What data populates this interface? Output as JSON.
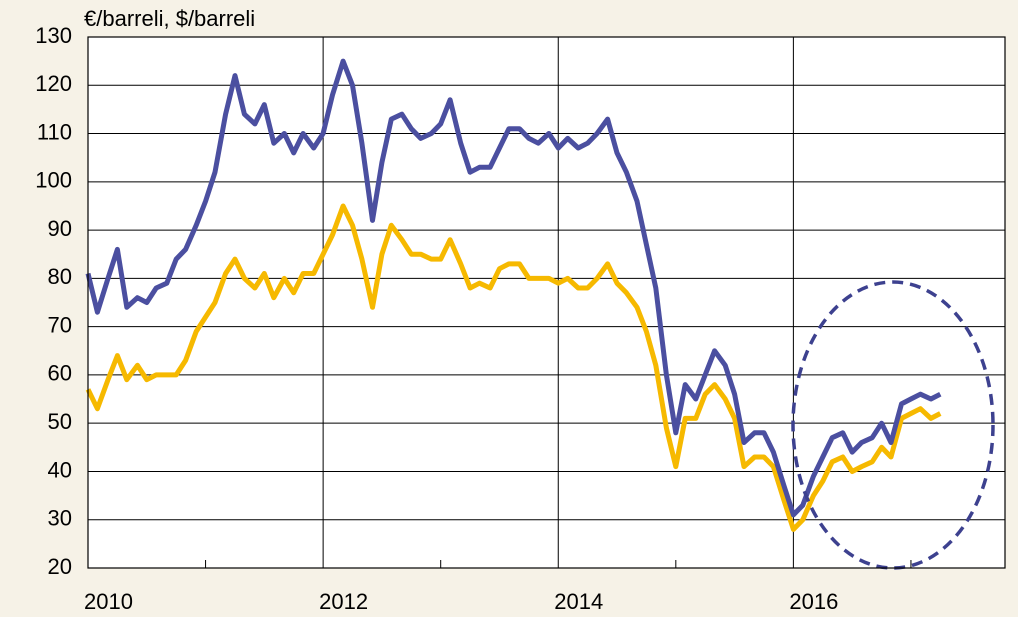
{
  "chart_data": {
    "type": "line",
    "ylabel": "€/barreli, $/barreli",
    "x": [
      2010,
      2010.08,
      2010.17,
      2010.25,
      2010.33,
      2010.42,
      2010.5,
      2010.58,
      2010.67,
      2010.75,
      2010.83,
      2010.92,
      2011,
      2011.08,
      2011.17,
      2011.25,
      2011.33,
      2011.42,
      2011.5,
      2011.58,
      2011.67,
      2011.75,
      2011.83,
      2011.92,
      2012,
      2012.08,
      2012.17,
      2012.25,
      2012.33,
      2012.42,
      2012.5,
      2012.58,
      2012.67,
      2012.75,
      2012.83,
      2012.92,
      2013,
      2013.08,
      2013.17,
      2013.25,
      2013.33,
      2013.42,
      2013.5,
      2013.58,
      2013.67,
      2013.75,
      2013.83,
      2013.92,
      2014,
      2014.08,
      2014.17,
      2014.25,
      2014.33,
      2014.42,
      2014.5,
      2014.58,
      2014.67,
      2014.75,
      2014.83,
      2014.92,
      2015,
      2015.08,
      2015.17,
      2015.25,
      2015.33,
      2015.42,
      2015.5,
      2015.58,
      2015.67,
      2015.75,
      2015.83,
      2015.92,
      2016,
      2016.08,
      2016.17,
      2016.25,
      2016.33,
      2016.42,
      2016.5,
      2016.58,
      2016.67,
      2016.75,
      2016.83,
      2016.92,
      2017,
      2017.08,
      2017.17,
      2017.25
    ],
    "series": [
      {
        "color": "#4b4fa0",
        "values": [
          81,
          73,
          80,
          86,
          74,
          76,
          75,
          78,
          79,
          84,
          86,
          91,
          96,
          102,
          114,
          122,
          114,
          112,
          116,
          108,
          110,
          106,
          110,
          107,
          110,
          118,
          125,
          120,
          108,
          92,
          104,
          113,
          114,
          111,
          109,
          110,
          112,
          117,
          108,
          102,
          103,
          103,
          107,
          111,
          111,
          109,
          108,
          110,
          107,
          109,
          107,
          108,
          110,
          113,
          106,
          102,
          96,
          87,
          78,
          60,
          48,
          58,
          55,
          60,
          65,
          62,
          56,
          46,
          48,
          48,
          44,
          37,
          31,
          33,
          39,
          43,
          47,
          48,
          44,
          46,
          47,
          50,
          46,
          54,
          55,
          56,
          55,
          56
        ]
      },
      {
        "color": "#f6b900",
        "values": [
          57,
          53,
          59,
          64,
          59,
          62,
          59,
          60,
          60,
          60,
          63,
          69,
          72,
          75,
          81,
          84,
          80,
          78,
          81,
          76,
          80,
          77,
          81,
          81,
          85,
          89,
          95,
          91,
          84,
          74,
          85,
          91,
          88,
          85,
          85,
          84,
          84,
          88,
          83,
          78,
          79,
          78,
          82,
          83,
          83,
          80,
          80,
          80,
          79,
          80,
          78,
          78,
          80,
          83,
          79,
          77,
          74,
          69,
          62,
          49,
          41,
          51,
          51,
          56,
          58,
          55,
          51,
          41,
          43,
          43,
          41,
          34,
          28,
          30,
          35,
          38,
          42,
          43,
          40,
          41,
          42,
          45,
          43,
          51,
          52,
          53,
          51,
          52
        ]
      }
    ],
    "xlim": [
      2010,
      2017.8
    ],
    "xticks": [
      2010,
      2012,
      2014,
      2016
    ],
    "xminor_ticks": [
      2011,
      2013,
      2015,
      2017
    ],
    "ylim": [
      20,
      130
    ],
    "yticks": [
      20,
      30,
      40,
      50,
      60,
      70,
      80,
      90,
      100,
      110,
      120,
      130
    ],
    "grid": true
  }
}
